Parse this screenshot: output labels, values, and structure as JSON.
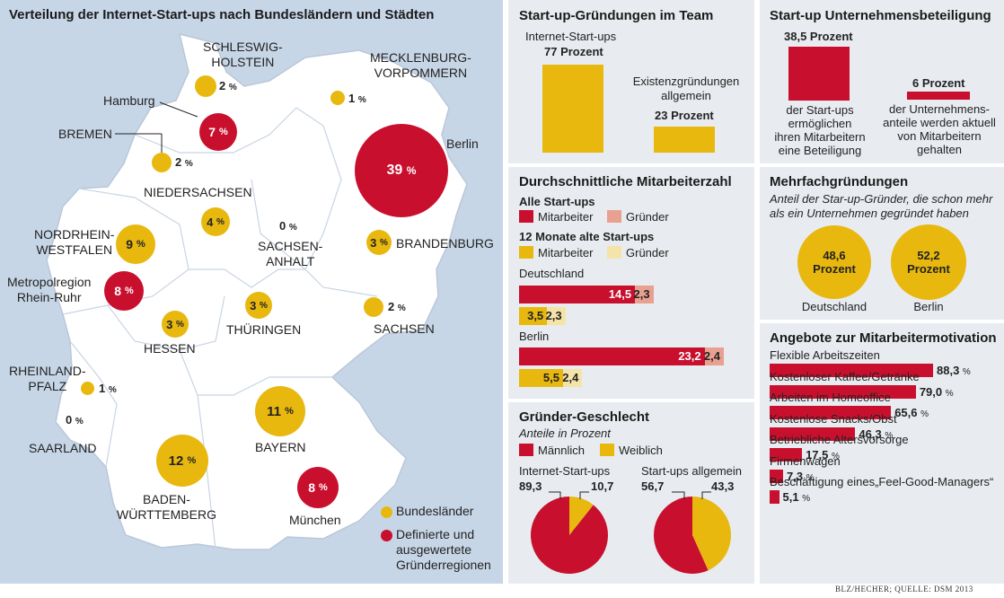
{
  "colors": {
    "yellow": "#e8b80f",
    "red": "#c8102e",
    "light_red": "#e8a090",
    "light_yellow": "#f5e4a8",
    "map_land": "#ffffff",
    "map_water": "#c7d6e7"
  },
  "map": {
    "title": "Verteilung der Internet-Start-ups nach Bundesländern und Städten",
    "labels": {
      "schleswig": "SCHLESWIG-\nHOLSTEIN",
      "mecklenburg": "MECKLENBURG-\nVORPOMMERN",
      "hamburg": "Hamburg",
      "bremen": "BREMEN",
      "berlin": "Berlin",
      "niedersachsen": "NIEDERSACHSEN",
      "nrw": "NORDRHEIN-\nWESTFALEN",
      "sachsen_anhalt": "SACHSEN-\nANHALT",
      "brandenburg": "BRANDENBURG",
      "rhein_ruhr": "Metropolregion\nRhein-Ruhr",
      "hessen": "HESSEN",
      "thueringen": "THÜRINGEN",
      "sachsen": "SACHSEN",
      "rheinland": "RHEINLAND-\nPFALZ",
      "saarland": "SAARLAND",
      "bayern": "BAYERN",
      "bawue": "BADEN-\nWÜRTTEMBERG",
      "muenchen": "München"
    },
    "values": {
      "schleswig": "2",
      "mecklenburg": "1",
      "hamburg": "7",
      "bremen": "2",
      "berlin": "39",
      "niedersachsen": "4",
      "sachsen_anhalt": "0",
      "nrw": "9",
      "brandenburg": "3",
      "rhein_ruhr": "8",
      "hessen": "3",
      "thueringen": "3",
      "sachsen": "2",
      "rheinland": "1",
      "saarland": "0",
      "bayern": "11",
      "bawue": "12",
      "muenchen": "8"
    },
    "percent_sign": "%",
    "legend": {
      "states": "Bundesländer",
      "regions": "Definierte und\nausgewertete\nGründerregionen"
    }
  },
  "team": {
    "title": "Start-up-Gründungen im Team",
    "internet_label": "Internet-Start-ups",
    "internet_value_text": "77 Prozent",
    "general_label": "Existenzgründungen\nallgemein",
    "general_value_text": "23 Prozent"
  },
  "beteiligung": {
    "title": "Start-up Unternehmensbeteiligung",
    "a_value_text": "38,5 Prozent",
    "a_caption": "der Start-ups\nermöglichen\nihren Mitarbeitern\neine Beteiligung",
    "b_value_text": "6 Prozent",
    "b_caption": "der Unternehmens-\nanteile werden aktuell\nvon Mitarbeitern\ngehalten"
  },
  "mitarbeiter": {
    "title": "Durchschnittliche Mitarbeiterzahl",
    "group1_title": "Alle Start-ups",
    "group1_a": "Mitarbeiter",
    "group1_b": "Gründer",
    "group2_title": "12 Monate alte Start-ups",
    "group2_a": "Mitarbeiter",
    "group2_b": "Gründer",
    "de_label": "Deutschland",
    "berlin_label": "Berlin",
    "de_all_emp": "14,5",
    "de_all_found": "2,3",
    "de_12_emp": "3,5",
    "de_12_found": "2,3",
    "be_all_emp": "23,2",
    "be_all_found": "2,4",
    "be_12_emp": "5,5",
    "be_12_found": "2,4"
  },
  "mehrfach": {
    "title": "Mehrfachgründungen",
    "subtitle": "Anteil der Star-up-Gründer, die schon mehr\nals ein Unternehmen gegründet haben",
    "de_value": "48,6\nProzent",
    "de_label": "Deutschland",
    "be_value": "52,2\nProzent",
    "be_label": "Berlin"
  },
  "geschlecht": {
    "title": "Gründer-Geschlecht",
    "subtitle": "Anteile in Prozent",
    "male": "Männlich",
    "female": "Weiblich",
    "pie1_label": "Internet-Start-ups",
    "pie1_m": "89,3",
    "pie1_w": "10,7",
    "pie2_label": "Start-ups allgemein",
    "pie2_m": "56,7",
    "pie2_w": "43,3"
  },
  "motivation": {
    "title": "Angebote zur Mitarbeitermotivation",
    "items": [
      {
        "label": "Flexible Arbeitszeiten",
        "value": "88,3"
      },
      {
        "label": "Kostenloser Kaffee/Getränke",
        "value": "79,0"
      },
      {
        "label": "Arbeiten im Homeoffice",
        "value": "65,6"
      },
      {
        "label": "Kostenlose Snacks/Obst",
        "value": "46,3"
      },
      {
        "label": "Betriebliche Altersvorsorge",
        "value": "17,5"
      },
      {
        "label": "Firmenwagen",
        "value": "7,3"
      },
      {
        "label": "Beschäftigung eines„Feel-Good-Managers“",
        "value": "5,1"
      }
    ]
  },
  "chart_data": [
    {
      "type": "bar",
      "title": "Start-up-Gründungen im Team",
      "categories": [
        "Internet-Start-ups",
        "Existenzgründungen allgemein"
      ],
      "values": [
        77,
        23
      ],
      "unit": "Prozent"
    },
    {
      "type": "bar",
      "title": "Start-up Unternehmensbeteiligung",
      "categories": [
        "der Start-ups ermöglichen ihren Mitarbeitern eine Beteiligung",
        "der Unternehmensanteile werden aktuell von Mitarbeitern gehalten"
      ],
      "values": [
        38.5,
        6
      ],
      "unit": "Prozent"
    },
    {
      "type": "bar",
      "title": "Durchschnittliche Mitarbeiterzahl",
      "categories": [
        "Deutschland",
        "Berlin"
      ],
      "series": [
        {
          "name": "Alle Start-ups – Mitarbeiter",
          "values": [
            14.5,
            23.2
          ]
        },
        {
          "name": "Alle Start-ups – Gründer",
          "values": [
            2.3,
            2.4
          ]
        },
        {
          "name": "12 Monate alte Start-ups – Mitarbeiter",
          "values": [
            3.5,
            5.5
          ]
        },
        {
          "name": "12 Monate alte Start-ups – Gründer",
          "values": [
            2.3,
            2.4
          ]
        }
      ]
    },
    {
      "type": "pie",
      "title": "Gründer-Geschlecht: Internet-Start-ups",
      "labels": [
        "Männlich",
        "Weiblich"
      ],
      "values": [
        89.3,
        10.7
      ]
    },
    {
      "type": "pie",
      "title": "Gründer-Geschlecht: Start-ups allgemein",
      "labels": [
        "Männlich",
        "Weiblich"
      ],
      "values": [
        56.7,
        43.3
      ]
    },
    {
      "type": "bar",
      "title": "Mehrfachgründungen",
      "categories": [
        "Deutschland",
        "Berlin"
      ],
      "values": [
        48.6,
        52.2
      ],
      "unit": "Prozent"
    },
    {
      "type": "bar",
      "title": "Angebote zur Mitarbeitermotivation",
      "categories": [
        "Flexible Arbeitszeiten",
        "Kostenloser Kaffee/Getränke",
        "Arbeiten im Homeoffice",
        "Kostenlose Snacks/Obst",
        "Betriebliche Altersvorsorge",
        "Firmenwagen",
        "Beschäftigung eines Feel-Good-Managers"
      ],
      "values": [
        88.3,
        79.0,
        65.6,
        46.3,
        17.5,
        7.3,
        5.1
      ],
      "unit": "%"
    },
    {
      "type": "scatter",
      "title": "Verteilung der Internet-Start-ups nach Bundesländern und Städten",
      "categories": [
        "Schleswig-Holstein",
        "Mecklenburg-Vorpommern",
        "Hamburg",
        "Bremen",
        "Berlin",
        "Niedersachsen",
        "Sachsen-Anhalt",
        "Nordrhein-Westfalen",
        "Brandenburg",
        "Metropolregion Rhein-Ruhr",
        "Hessen",
        "Thüringen",
        "Sachsen",
        "Rheinland-Pfalz",
        "Saarland",
        "Bayern",
        "Baden-Württemberg",
        "München"
      ],
      "values": [
        2,
        1,
        7,
        2,
        39,
        4,
        0,
        9,
        3,
        8,
        3,
        3,
        2,
        1,
        0,
        11,
        12,
        8
      ],
      "unit": "%"
    }
  ],
  "credit": "BLZ/HECHER; QUELLE: DSM 2013"
}
